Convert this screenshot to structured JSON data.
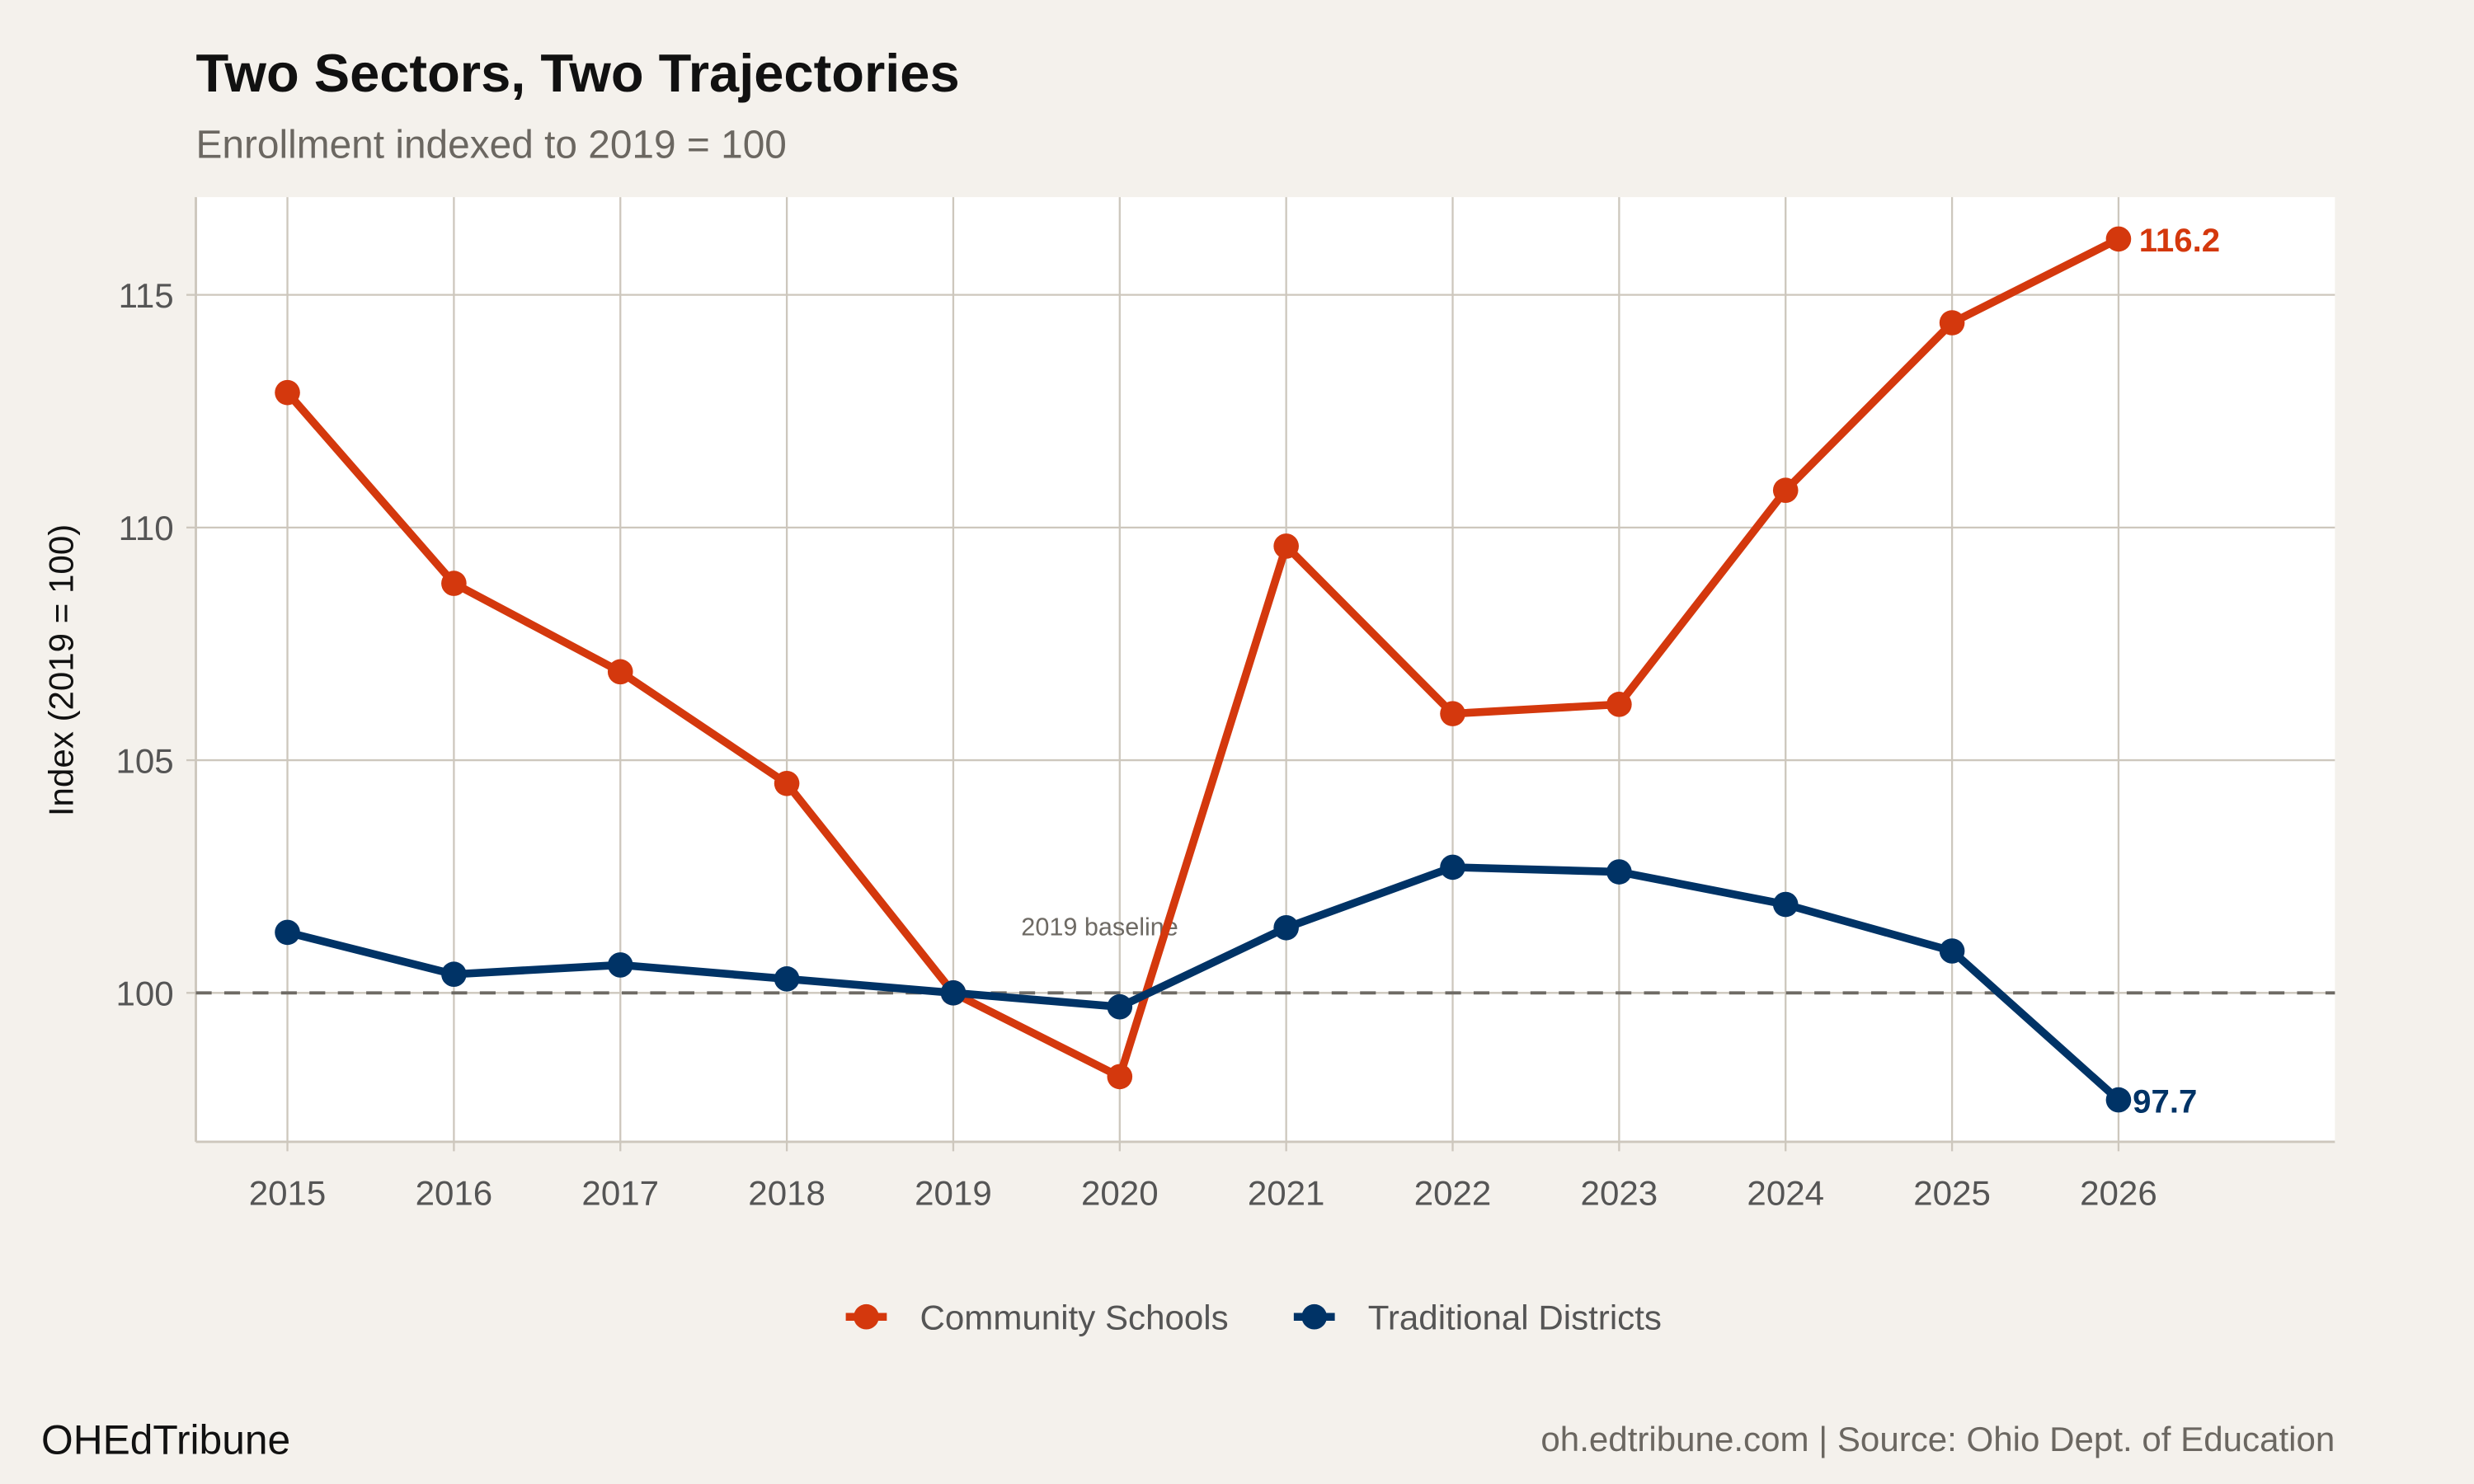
{
  "chart_data": {
    "type": "line",
    "title": "Two Sectors, Two Trajectories",
    "subtitle": "Enrollment indexed to 2019 = 100",
    "xlabel": "",
    "ylabel": "Index (2019 = 100)",
    "x": [
      2015,
      2016,
      2017,
      2018,
      2019,
      2020,
      2021,
      2022,
      2023,
      2024,
      2025,
      2026
    ],
    "xlim": [
      2014.45,
      2027.3
    ],
    "ylim": [
      96.8,
      117.1
    ],
    "yticks": [
      100,
      105,
      110,
      115
    ],
    "grid": true,
    "legend_position": "bottom",
    "series": [
      {
        "name": "Community Schools",
        "color": "#d4380d",
        "values": [
          112.9,
          108.8,
          106.9,
          104.5,
          100.0,
          98.2,
          109.6,
          106.0,
          106.2,
          110.8,
          114.4,
          116.2
        ],
        "end_label": "116.2"
      },
      {
        "name": "Traditional Districts",
        "color": "#003366",
        "values": [
          101.3,
          100.4,
          100.6,
          100.3,
          100.0,
          99.7,
          101.4,
          102.7,
          102.6,
          101.9,
          100.9,
          97.7
        ],
        "end_label": "97.7"
      }
    ],
    "reference_line": {
      "y": 100,
      "style": "dashed",
      "label": "2019 baseline"
    }
  },
  "footer": {
    "brand": "OHEdTribune",
    "source": "oh.edtribune.com | Source: Ohio Dept. of Education"
  },
  "colors": {
    "background": "#f4f1ec",
    "panel": "#ffffff",
    "grid": "#cdc7bd"
  }
}
